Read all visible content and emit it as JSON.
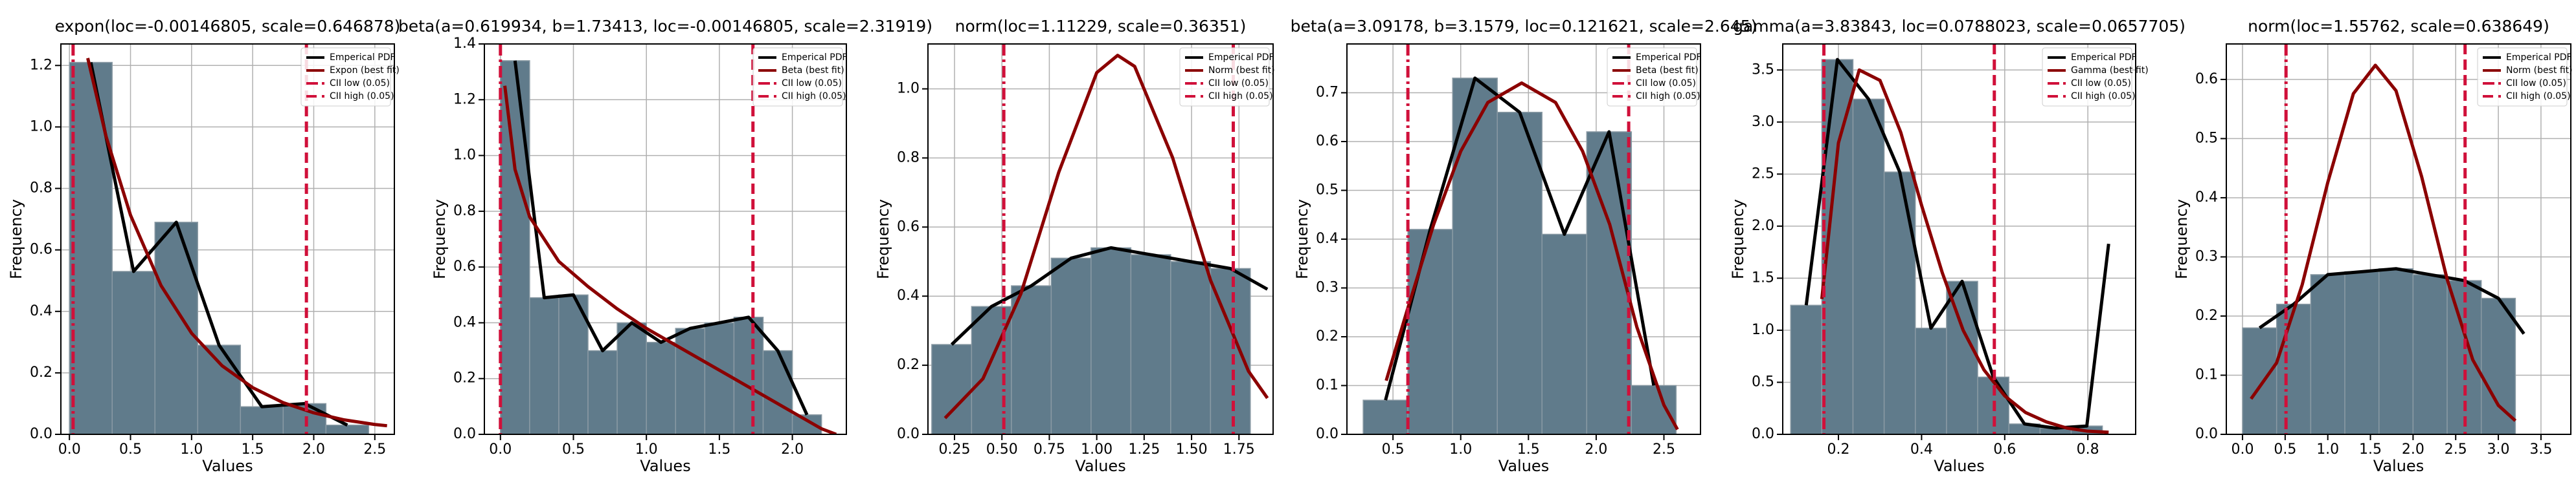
{
  "chart_data": [
    {
      "type": "histogram",
      "title": "expon(loc=-0.00146805, scale=0.646878)",
      "xlabel": "Values",
      "ylabel": "Frequency",
      "bins": [
        0,
        0.35,
        0.7,
        1.05,
        1.4,
        1.75,
        2.1,
        2.45
      ],
      "counts": [
        1.21,
        0.53,
        0.69,
        0.29,
        0.09,
        0.1,
        0.03
      ],
      "bar_color": "#607b8b",
      "xlim": [
        -0.07,
        2.66
      ],
      "ylim": [
        0,
        1.27
      ],
      "xticks": [
        {
          "value": 0,
          "label": "0.0"
        },
        0.5,
        {
          "value": 1,
          "label": "1.0"
        },
        1.5,
        {
          "value": 2,
          "label": "2.0"
        },
        2.5
      ],
      "yticks": [
        {
          "value": 0,
          "label": "0.0"
        },
        0.2,
        0.4,
        0.6,
        0.8,
        {
          "value": 1,
          "label": "1.0"
        },
        1.2
      ],
      "grid": true,
      "legend": "upper right",
      "series": [
        {
          "name": "Emperical PDF",
          "color": "#000000",
          "x": [
            0.175,
            0.525,
            0.875,
            1.225,
            1.575,
            1.925,
            2.275
          ],
          "values": [
            1.21,
            0.53,
            0.69,
            0.29,
            0.09,
            0.1,
            0.03
          ]
        },
        {
          "name": "Expon (best fit)",
          "color": "#8b0000",
          "x": [
            0.15,
            0.3,
            0.5,
            0.75,
            1.0,
            1.25,
            1.5,
            1.75,
            2.0,
            2.25,
            2.5,
            2.6
          ],
          "values": [
            1.224,
            0.969,
            0.713,
            0.484,
            0.329,
            0.223,
            0.152,
            0.103,
            0.07,
            0.047,
            0.032,
            0.028
          ]
        }
      ],
      "vlines": [
        {
          "name": "CII low (0.05)",
          "color": "#d0103a",
          "style": "dashdot",
          "value": 0.03
        },
        {
          "name": "CII high (0.05)",
          "color": "#d0103a",
          "style": "dashed",
          "value": 1.94
        }
      ]
    },
    {
      "type": "histogram",
      "title": "beta(a=0.619934, b=1.73413, loc=-0.00146805, scale=2.31919)",
      "xlabel": "Values",
      "ylabel": "Frequency",
      "bins": [
        0,
        0.2,
        0.4,
        0.6,
        0.8,
        1.0,
        1.2,
        1.4,
        1.6,
        1.8,
        2.0,
        2.2
      ],
      "counts": [
        1.34,
        0.49,
        0.5,
        0.3,
        0.4,
        0.33,
        0.38,
        0.4,
        0.42,
        0.3,
        0.07
      ],
      "bar_color": "#607b8b",
      "xlim": [
        -0.11,
        2.37
      ],
      "ylim": [
        0,
        1.4
      ],
      "xticks": [
        {
          "value": 0,
          "label": "0.0"
        },
        0.5,
        {
          "value": 1,
          "label": "1.0"
        },
        1.5,
        {
          "value": 2,
          "label": "2.0"
        }
      ],
      "yticks": [
        {
          "value": 0,
          "label": "0.0"
        },
        0.2,
        0.4,
        0.6,
        0.8,
        {
          "value": 1,
          "label": "1.0"
        },
        1.2,
        1.4
      ],
      "grid": true,
      "legend": "upper right",
      "series": [
        {
          "name": "Emperical PDF",
          "color": "#000000",
          "x": [
            0.1,
            0.3,
            0.5,
            0.7,
            0.9,
            1.1,
            1.3,
            1.5,
            1.7,
            1.9,
            2.1
          ],
          "values": [
            1.34,
            0.49,
            0.5,
            0.3,
            0.4,
            0.33,
            0.38,
            0.4,
            0.42,
            0.3,
            0.07
          ]
        },
        {
          "name": "Beta (best fit)",
          "color": "#8b0000",
          "x": [
            0.03,
            0.1,
            0.2,
            0.4,
            0.6,
            0.8,
            1.0,
            1.2,
            1.4,
            1.6,
            1.8,
            2.0,
            2.2,
            2.3
          ],
          "values": [
            1.25,
            0.95,
            0.78,
            0.62,
            0.53,
            0.45,
            0.38,
            0.32,
            0.26,
            0.2,
            0.14,
            0.08,
            0.02,
            0
          ]
        }
      ],
      "vlines": [
        {
          "name": "CII low (0.05)",
          "color": "#d0103a",
          "style": "dashdot",
          "value": 0.0
        },
        {
          "name": "CII high (0.05)",
          "color": "#d0103a",
          "style": "dashed",
          "value": 1.73
        }
      ]
    },
    {
      "type": "histogram",
      "title": "norm(loc=1.11229, scale=0.36351)",
      "xlabel": "Values",
      "ylabel": "Frequency",
      "bins": [
        0.13,
        0.34,
        0.55,
        0.76,
        0.97,
        1.18,
        1.39,
        1.6,
        1.81
      ],
      "counts": [
        0.26,
        0.37,
        0.43,
        0.51,
        0.54,
        0.52,
        0.5,
        0.48
      ],
      "bar_color": "#607b8b",
      "xlim": [
        0.11,
        1.93
      ],
      "ylim": [
        0,
        1.13
      ],
      "xticks": [
        0.25,
        {
          "value": 0.5,
          "label": "0.50"
        },
        0.75,
        {
          "value": 1,
          "label": "1.00"
        },
        1.25,
        {
          "value": 1.5,
          "label": "1.50"
        },
        1.75
      ],
      "yticks": [
        {
          "value": 0,
          "label": "0.0"
        },
        0.2,
        0.4,
        0.6,
        0.8,
        {
          "value": 1,
          "label": "1.0"
        }
      ],
      "grid": true,
      "legend": "upper right",
      "series": [
        {
          "name": "Emperical PDF",
          "color": "#000000",
          "x": [
            0.235,
            0.445,
            0.655,
            0.865,
            1.075,
            1.285,
            1.495,
            1.705,
            1.9
          ],
          "values": [
            0.26,
            0.37,
            0.43,
            0.51,
            0.54,
            0.52,
            0.5,
            0.48,
            0.42
          ]
        },
        {
          "name": "Norm (best fit)",
          "color": "#8b0000",
          "x": [
            0.2,
            0.4,
            0.6,
            0.8,
            1.0,
            1.11,
            1.2,
            1.4,
            1.6,
            1.8,
            1.9
          ],
          "values": [
            0.047,
            0.161,
            0.407,
            0.759,
            1.047,
            1.097,
            1.065,
            0.801,
            0.446,
            0.183,
            0.105
          ]
        }
      ],
      "vlines": [
        {
          "name": "CII low (0.05)",
          "color": "#d0103a",
          "style": "dashdot",
          "value": 0.51
        },
        {
          "name": "CII high (0.05)",
          "color": "#d0103a",
          "style": "dashed",
          "value": 1.72
        }
      ]
    },
    {
      "type": "histogram",
      "title": "beta(a=3.09178, b=3.1579, loc=0.121621, scale=2.645)",
      "xlabel": "Values",
      "ylabel": "Frequency",
      "bins": [
        0.28,
        0.61,
        0.94,
        1.27,
        1.6,
        1.93,
        2.26,
        2.59
      ],
      "counts": [
        0.07,
        0.42,
        0.73,
        0.66,
        0.41,
        0.62,
        0.1
      ],
      "bar_color": "#607b8b",
      "xlim": [
        0.16,
        2.77
      ],
      "ylim": [
        0,
        0.8
      ],
      "xticks": [
        0.5,
        {
          "value": 1,
          "label": "1.0"
        },
        1.5,
        {
          "value": 2,
          "label": "2.0"
        },
        2.5
      ],
      "yticks": [
        {
          "value": 0,
          "label": "0.0"
        },
        0.1,
        0.2,
        0.3,
        0.4,
        0.5,
        0.6,
        0.7
      ],
      "grid": true,
      "legend": "upper right",
      "series": [
        {
          "name": "Emperical PDF",
          "color": "#000000",
          "x": [
            0.445,
            0.775,
            1.105,
            1.435,
            1.765,
            2.095,
            2.425
          ],
          "values": [
            0.07,
            0.42,
            0.73,
            0.66,
            0.41,
            0.62,
            0.1
          ]
        },
        {
          "name": "Beta (best fit)",
          "color": "#8b0000",
          "x": [
            0.45,
            0.6,
            0.8,
            1.0,
            1.2,
            1.45,
            1.7,
            1.9,
            2.1,
            2.3,
            2.5,
            2.6
          ],
          "values": [
            0.11,
            0.25,
            0.43,
            0.58,
            0.68,
            0.72,
            0.68,
            0.58,
            0.43,
            0.22,
            0.06,
            0.01
          ]
        }
      ],
      "vlines": [
        {
          "name": "CII low (0.05)",
          "color": "#d0103a",
          "style": "dashdot",
          "value": 0.61
        },
        {
          "name": "CII high (0.05)",
          "color": "#d0103a",
          "style": "dashed",
          "value": 2.24
        }
      ]
    },
    {
      "type": "histogram",
      "title": "gamma(a=3.83843, loc=0.0788023, scale=0.0657705)",
      "xlabel": "Values",
      "ylabel": "Frequency",
      "bins": [
        0.085,
        0.16,
        0.235,
        0.31,
        0.385,
        0.46,
        0.535,
        0.61,
        0.685,
        0.76,
        0.835
      ],
      "counts": [
        1.24,
        3.6,
        3.22,
        2.52,
        1.02,
        1.47,
        0.55,
        0.1,
        0.06,
        0.08
      ],
      "bar_color": "#607b8b",
      "xlim": [
        0.066,
        0.915
      ],
      "ylim": [
        0,
        3.75
      ],
      "xticks": [
        0.2,
        0.4,
        0.6,
        0.8
      ],
      "yticks": [
        {
          "value": 0,
          "label": "0.0"
        },
        0.5,
        {
          "value": 1,
          "label": "1.0"
        },
        1.5,
        {
          "value": 2,
          "label": "2.0"
        },
        2.5,
        {
          "value": 3,
          "label": "3.0"
        },
        3.5
      ],
      "grid": true,
      "legend": "upper right",
      "series": [
        {
          "name": "Emperical PDF",
          "color": "#000000",
          "x": [
            0.1225,
            0.1975,
            0.2725,
            0.3475,
            0.4225,
            0.4975,
            0.5725,
            0.6475,
            0.7225,
            0.7975,
            0.85
          ],
          "values": [
            1.24,
            3.6,
            3.22,
            2.52,
            1.02,
            1.47,
            0.55,
            0.1,
            0.06,
            0.08,
            1.83
          ]
        },
        {
          "name": "Gamma (best fit)",
          "color": "#8b0000",
          "x": [
            0.16,
            0.2,
            0.25,
            0.3,
            0.35,
            0.4,
            0.45,
            0.5,
            0.55,
            0.6,
            0.65,
            0.7,
            0.75,
            0.8,
            0.85
          ],
          "values": [
            1.3,
            2.8,
            3.5,
            3.4,
            2.9,
            2.2,
            1.55,
            1.0,
            0.62,
            0.37,
            0.21,
            0.12,
            0.06,
            0.03,
            0.02
          ]
        }
      ],
      "vlines": [
        {
          "name": "CII low (0.05)",
          "color": "#d0103a",
          "style": "dashdot",
          "value": 0.165
        },
        {
          "name": "CII high (0.05)",
          "color": "#d0103a",
          "style": "dashed",
          "value": 0.575
        }
      ]
    },
    {
      "type": "histogram",
      "title": "norm(loc=1.55762, scale=0.638649)",
      "xlabel": "Values",
      "ylabel": "Frequency",
      "bins": [
        0,
        0.4,
        0.8,
        1.2,
        1.6,
        2.0,
        2.4,
        2.8,
        3.2
      ],
      "counts": [
        0.18,
        0.22,
        0.27,
        0.275,
        0.28,
        0.27,
        0.26,
        0.23
      ],
      "bar_color": "#607b8b",
      "xlim": [
        -0.19,
        3.85
      ],
      "ylim": [
        0,
        0.66
      ],
      "xticks": [
        {
          "value": 0,
          "label": "0.0"
        },
        0.5,
        {
          "value": 1,
          "label": "1.0"
        },
        1.5,
        {
          "value": 2,
          "label": "2.0"
        },
        2.5,
        {
          "value": 3,
          "label": "3.0"
        },
        3.5
      ],
      "yticks": [
        {
          "value": 0,
          "label": "0.0"
        },
        0.1,
        0.2,
        0.3,
        0.4,
        0.5,
        0.6
      ],
      "grid": true,
      "legend": "upper right",
      "series": [
        {
          "name": "Emperical PDF",
          "color": "#000000",
          "x": [
            0.2,
            0.6,
            1.0,
            1.4,
            1.8,
            2.2,
            2.6,
            3.0,
            3.3
          ],
          "values": [
            0.18,
            0.22,
            0.27,
            0.275,
            0.28,
            0.27,
            0.26,
            0.23,
            0.17
          ]
        },
        {
          "name": "Norm (best fit)",
          "color": "#8b0000",
          "x": [
            0.1,
            0.4,
            0.7,
            1.0,
            1.3,
            1.558,
            1.8,
            2.1,
            2.4,
            2.7,
            3.0,
            3.2
          ],
          "values": [
            0.06,
            0.121,
            0.253,
            0.426,
            0.576,
            0.624,
            0.581,
            0.436,
            0.262,
            0.126,
            0.049,
            0.023
          ]
        }
      ],
      "vlines": [
        {
          "name": "CII low (0.05)",
          "color": "#d0103a",
          "style": "dashdot",
          "value": 0.51
        },
        {
          "name": "CII high (0.05)",
          "color": "#d0103a",
          "style": "dashed",
          "value": 2.61
        }
      ]
    }
  ]
}
